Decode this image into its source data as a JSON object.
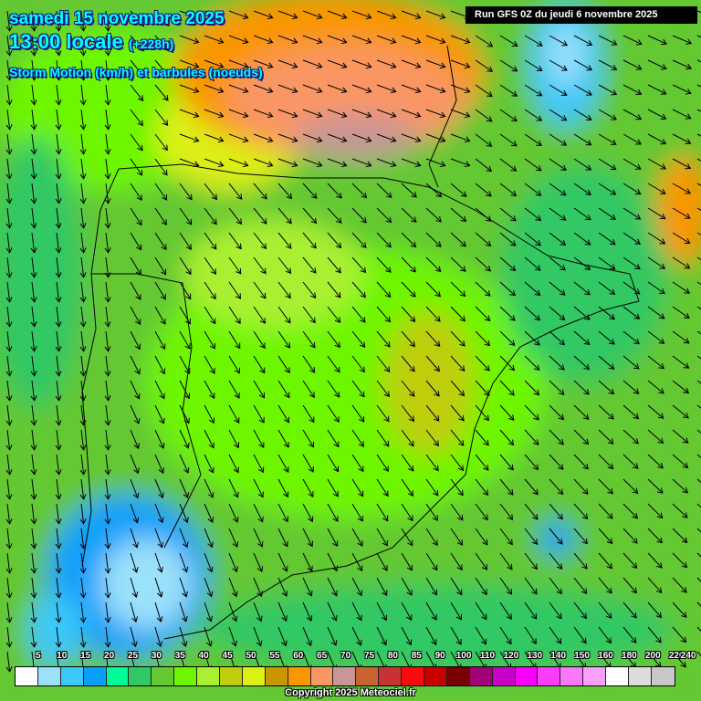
{
  "header": {
    "date": "samedi 15 novembre 2025",
    "time": "13:00 locale",
    "lead": "(+228h)",
    "parameter": "Storm Motion (km/h) et barbules (noeuds)",
    "run": "Run GFS 0Z du jeudi 6 novembre 2025"
  },
  "legend": {
    "labels": [
      "5",
      "10",
      "15",
      "20",
      "25",
      "30",
      "35",
      "40",
      "45",
      "50",
      "55",
      "60",
      "65",
      "70",
      "75",
      "80",
      "85",
      "90",
      "100",
      "110",
      "120",
      "130",
      "140",
      "150",
      "160",
      "180",
      "200",
      "220",
      "240"
    ],
    "colors": [
      "#ffffff",
      "#9be1fa",
      "#3cc8fa",
      "#0aa0fa",
      "#00fa96",
      "#32c864",
      "#64c832",
      "#6ef500",
      "#aaf032",
      "#bece0a",
      "#dcf014",
      "#c89600",
      "#fa9600",
      "#fa9664",
      "#c89696",
      "#c86432",
      "#c83232",
      "#fa0a0a",
      "#c80000",
      "#780000",
      "#a00078",
      "#c800c8",
      "#fa00fa",
      "#fa3cfa",
      "#fa78fa",
      "#faa0fa",
      "#ffffff",
      "#dcdcdc",
      "#c8c8c8"
    ]
  },
  "footer": {
    "copyright": "Copyright 2025 Meteociel.fr"
  }
}
